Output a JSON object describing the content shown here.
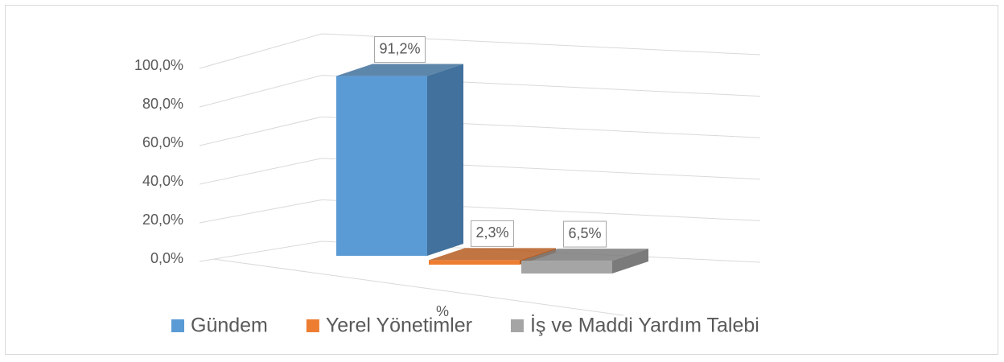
{
  "chart_data": {
    "type": "bar3d",
    "categories": [
      "%"
    ],
    "series": [
      {
        "name": "Gündem",
        "color": "#5b9bd5",
        "side_color": "#41719c",
        "values": [
          91.2
        ],
        "value_labels": [
          "91,2%"
        ]
      },
      {
        "name": "Yerel Yönetimler",
        "color": "#ed7d31",
        "side_color": "#b55d22",
        "values": [
          2.3
        ],
        "value_labels": [
          "2,3%"
        ]
      },
      {
        "name": "İş ve Maddi Yardım Talebi",
        "color": "#a5a5a5",
        "side_color": "#7b7b7b",
        "values": [
          6.5
        ],
        "value_labels": [
          "6,5%"
        ]
      }
    ],
    "ylim": [
      0,
      100
    ],
    "yticks": [
      {
        "value": 0,
        "label": "0,0%"
      },
      {
        "value": 20,
        "label": "20,0%"
      },
      {
        "value": 40,
        "label": "40,0%"
      },
      {
        "value": 60,
        "label": "60,0%"
      },
      {
        "value": 80,
        "label": "80,0%"
      },
      {
        "value": 100,
        "label": "100,0%"
      }
    ],
    "grid": true,
    "legend": "bottom"
  }
}
